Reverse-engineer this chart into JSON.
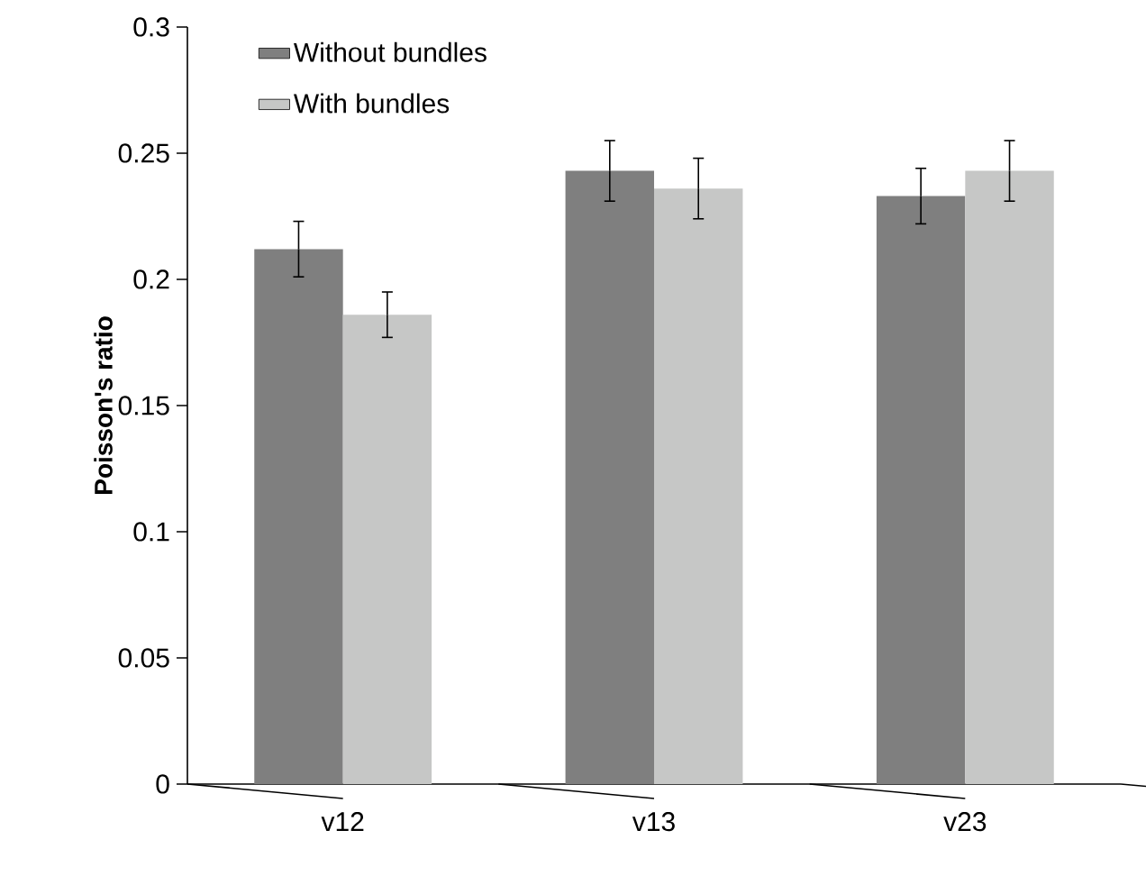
{
  "chart_data": {
    "type": "bar",
    "ylabel": "Poisson's ratio",
    "categories": [
      "v12",
      "v13",
      "v23"
    ],
    "series": [
      {
        "name": "Without bundles",
        "color": "#7f7f7f",
        "values": [
          0.212,
          0.243,
          0.233
        ],
        "errors": [
          0.011,
          0.012,
          0.011
        ]
      },
      {
        "name": "With bundles",
        "color": "#c6c7c6",
        "values": [
          0.186,
          0.236,
          0.243
        ],
        "errors": [
          0.009,
          0.012,
          0.012
        ]
      }
    ],
    "ylim": [
      0,
      0.3
    ],
    "yticks": [
      0,
      0.05,
      0.1,
      0.15,
      0.2,
      0.25,
      0.3
    ],
    "grid": false,
    "legend": "top left"
  }
}
